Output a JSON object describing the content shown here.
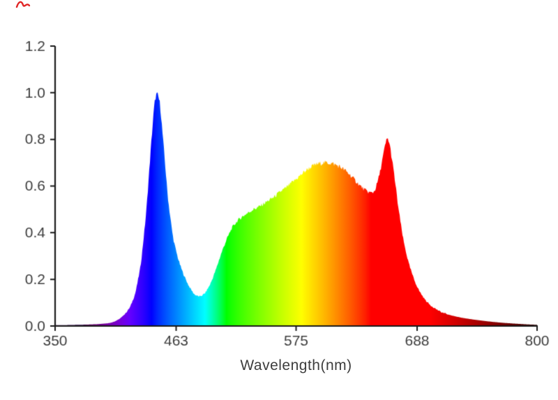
{
  "chart_data": {
    "type": "area",
    "title": "",
    "xlabel": "Wavelength(nm)",
    "ylabel": "",
    "xlim": [
      350,
      800
    ],
    "ylim": [
      0,
      1.2
    ],
    "x_ticks": [
      350,
      463,
      575,
      688,
      800
    ],
    "x_tick_labels": [
      "350",
      "463",
      "575",
      "688",
      "800"
    ],
    "y_ticks": [
      0.0,
      0.2,
      0.4,
      0.6,
      0.8,
      1.0,
      1.2
    ],
    "y_tick_labels": [
      "0.0",
      "0.2",
      "0.4",
      "0.6",
      "0.8",
      "1.0",
      "1.2"
    ],
    "grid": false,
    "legend": "none",
    "fill_style": "visible-light-spectrum-gradient-by-wavelength",
    "series": [
      {
        "name": "spectral-power-distribution",
        "x": [
          350,
          360,
          370,
          380,
          390,
          400,
          405,
          410,
          415,
          420,
          425,
          430,
          435,
          440,
          443,
          445,
          448,
          450,
          453,
          455,
          458,
          460,
          463,
          466,
          470,
          475,
          480,
          485,
          490,
          495,
          500,
          505,
          510,
          515,
          520,
          525,
          530,
          535,
          540,
          545,
          550,
          555,
          560,
          565,
          570,
          575,
          580,
          585,
          590,
          595,
          600,
          605,
          610,
          615,
          620,
          625,
          630,
          635,
          640,
          645,
          648,
          650,
          653,
          655,
          658,
          660,
          662,
          665,
          668,
          670,
          673,
          675,
          680,
          685,
          690,
          695,
          700,
          710,
          720,
          730,
          740,
          750,
          760,
          770,
          780,
          790,
          800
        ],
        "y": [
          0.004,
          0.004,
          0.005,
          0.006,
          0.008,
          0.012,
          0.018,
          0.03,
          0.05,
          0.08,
          0.14,
          0.26,
          0.48,
          0.8,
          0.97,
          1.0,
          0.96,
          0.84,
          0.68,
          0.56,
          0.45,
          0.38,
          0.32,
          0.27,
          0.22,
          0.17,
          0.135,
          0.125,
          0.14,
          0.18,
          0.24,
          0.31,
          0.37,
          0.42,
          0.45,
          0.47,
          0.485,
          0.5,
          0.51,
          0.525,
          0.54,
          0.555,
          0.575,
          0.59,
          0.61,
          0.63,
          0.65,
          0.67,
          0.685,
          0.695,
          0.7,
          0.7,
          0.695,
          0.685,
          0.67,
          0.65,
          0.625,
          0.6,
          0.58,
          0.57,
          0.575,
          0.6,
          0.65,
          0.7,
          0.77,
          0.81,
          0.79,
          0.7,
          0.6,
          0.52,
          0.43,
          0.37,
          0.27,
          0.2,
          0.15,
          0.115,
          0.09,
          0.06,
          0.045,
          0.035,
          0.028,
          0.022,
          0.017,
          0.013,
          0.01,
          0.007,
          0.005
        ]
      }
    ],
    "peaks": [
      {
        "wavelength": 445,
        "value": 1.0
      },
      {
        "wavelength": 602,
        "value": 0.7
      },
      {
        "wavelength": 660,
        "value": 0.81
      }
    ],
    "colors": {
      "background": "#ffffff",
      "axis": "#1a1a1a",
      "tick_label": "#3d3d3d",
      "corner_mark": "#e02424"
    }
  }
}
